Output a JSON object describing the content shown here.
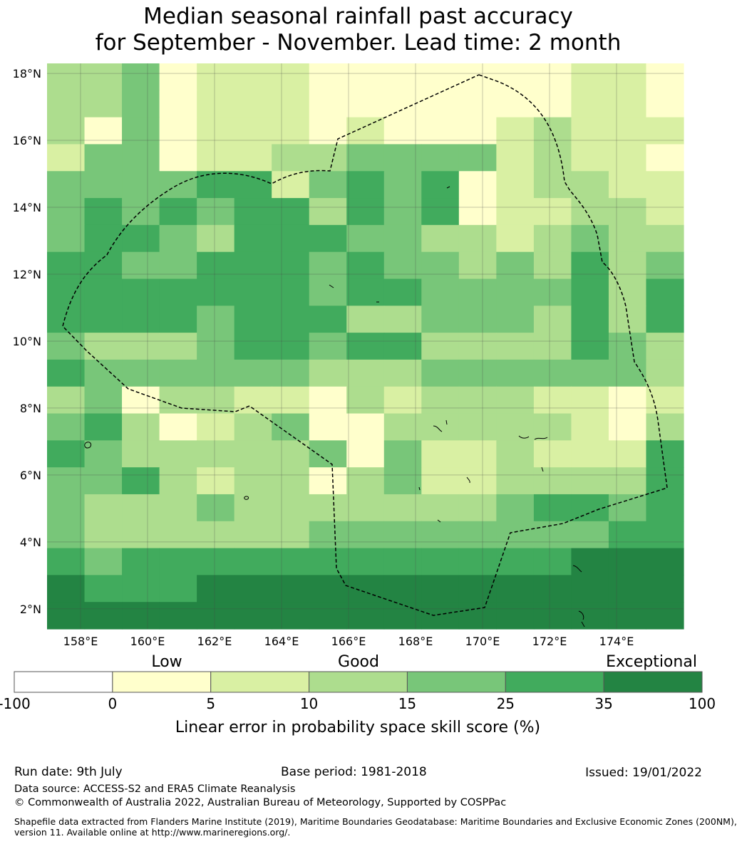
{
  "title": {
    "line1": "Median seasonal rainfall past accuracy",
    "line2": "for September - November. Lead time: 2 month"
  },
  "map": {
    "lat_labels": [
      "18°N",
      "16°N",
      "14°N",
      "12°N",
      "10°N",
      "8°N",
      "6°N",
      "4°N",
      "2°N"
    ],
    "lon_labels": [
      "158°E",
      "160°E",
      "162°E",
      "164°E",
      "166°E",
      "168°E",
      "170°E",
      "172°E",
      "174°E"
    ],
    "extent": {
      "lon_min": 157.0,
      "lon_max": 176.0,
      "lat_min": 1.4,
      "lat_max": 18.3
    },
    "cell_deg": 0.84,
    "grid_class_rows": [
      "33412221111111221",
      "33412221111111221",
      "31412221211123222",
      "24412233444423221",
      "44445524545123322",
      "45454553545122332",
      "45543555443323433",
      "55445554544343534",
      "55555554554444535",
      "55554555334443535",
      "43334554553333543",
      "54444443334444443",
      "34133221323332212",
      "45312341133333213",
      "54333334142232225",
      "44532331342233335",
      "43334333333345545",
      "43333334444444455",
      "54555555555555666",
      "65556666666666666",
      "66666666666666666"
    ],
    "colors": {
      "c0": "#ffffff",
      "c1": "#ffffcc",
      "c2": "#d9f0a3",
      "c3": "#addd8e",
      "c4": "#78c679",
      "c5": "#41ab5d",
      "c6": "#238443"
    },
    "boundary_style": "dashed black line"
  },
  "colorbar": {
    "category_labels": [
      "Low",
      "Good",
      "Exceptional"
    ],
    "ticks": [
      "-100",
      "0",
      "5",
      "10",
      "15",
      "25",
      "35",
      "100"
    ],
    "colors": [
      "#ffffff",
      "#ffffcc",
      "#d9f0a3",
      "#addd8e",
      "#78c679",
      "#41ab5d",
      "#238443"
    ],
    "label": "Linear error in probability space skill score (%)"
  },
  "footer": {
    "run_date": "Run date: 9th July",
    "base_period": "Base period: 1981-2018",
    "issued": "Issued: 19/01/2022",
    "data_source": "Data source: ACCESS-S2 and ERA5 Climate Reanalysis",
    "copyright": "© Commonwealth of Australia 2022, Australian Bureau of Meteorology, Supported by COSPPac",
    "shapefile_line1": "Shapefile data extracted from Flanders Marine Institute (2019), Maritime Boundaries Geodatabase: Maritime Boundaries and Exclusive Economic Zones (200NM),",
    "shapefile_line2": "version 11. Available online at http://www.marineregions.org/."
  }
}
